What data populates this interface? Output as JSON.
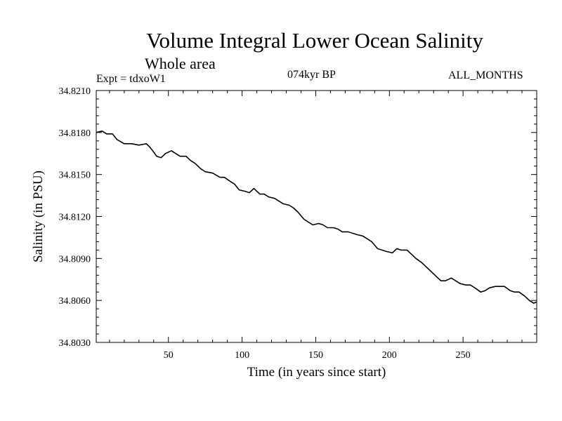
{
  "chart_data": {
    "type": "line",
    "title": "Volume Integral Lower Ocean Salinity",
    "subtitle": "Whole area",
    "annotations": {
      "experiment": "Expt = tdxoW1",
      "period": "074kyr BP",
      "months": "ALL_MONTHS"
    },
    "xlabel": "Time (in years since start)",
    "ylabel": "Salinity (in PSU)",
    "xlim": [
      1,
      300
    ],
    "ylim": [
      34.803,
      34.821
    ],
    "x_ticks": [
      50,
      100,
      150,
      200,
      250
    ],
    "x_tick_labels": [
      "50",
      "100",
      "150",
      "200",
      "250"
    ],
    "y_ticks": [
      34.803,
      34.806,
      34.809,
      34.812,
      34.815,
      34.818,
      34.821
    ],
    "y_tick_labels": [
      "34.8030",
      "34.8060",
      "34.8090",
      "34.8120",
      "34.8150",
      "34.8180",
      "34.8210"
    ],
    "grid": false,
    "series": [
      {
        "name": "salinity",
        "color": "#000000",
        "x": [
          1,
          5,
          8,
          12,
          15,
          20,
          25,
          30,
          35,
          37,
          40,
          42,
          45,
          48,
          52,
          55,
          58,
          62,
          65,
          68,
          72,
          75,
          80,
          85,
          88,
          92,
          95,
          98,
          102,
          105,
          108,
          112,
          115,
          118,
          122,
          125,
          128,
          132,
          135,
          138,
          142,
          145,
          148,
          152,
          155,
          158,
          162,
          165,
          168,
          172,
          175,
          178,
          182,
          185,
          188,
          192,
          195,
          198,
          202,
          205,
          208,
          212,
          215,
          218,
          222,
          225,
          228,
          232,
          235,
          238,
          242,
          245,
          248,
          252,
          255,
          258,
          262,
          265,
          268,
          272,
          275,
          278,
          282,
          285,
          288,
          292,
          295,
          298,
          300
        ],
        "y": [
          34.818,
          34.8181,
          34.8179,
          34.8179,
          34.8175,
          34.8172,
          34.8172,
          34.8171,
          34.8172,
          34.817,
          34.8166,
          34.8163,
          34.8162,
          34.8165,
          34.8167,
          34.8165,
          34.8163,
          34.8163,
          34.816,
          34.8158,
          34.8154,
          34.8152,
          34.8151,
          34.8148,
          34.8148,
          34.8145,
          34.8143,
          34.8139,
          34.8138,
          34.8137,
          34.814,
          34.8136,
          34.8136,
          34.8134,
          34.8133,
          34.8131,
          34.8129,
          34.8128,
          34.8126,
          34.8123,
          34.8118,
          34.8116,
          34.8114,
          34.8115,
          34.8114,
          34.8112,
          34.8112,
          34.8111,
          34.8109,
          34.8109,
          34.8108,
          34.8107,
          34.8106,
          34.8104,
          34.8102,
          34.8097,
          34.8096,
          34.8095,
          34.8094,
          34.8097,
          34.8096,
          34.8096,
          34.8093,
          34.809,
          34.8087,
          34.8084,
          34.8081,
          34.8077,
          34.8074,
          34.8074,
          34.8076,
          34.8074,
          34.8072,
          34.8071,
          34.8071,
          34.8069,
          34.8066,
          34.8067,
          34.8069,
          34.807,
          34.807,
          34.807,
          34.8067,
          34.8066,
          34.8066,
          34.8063,
          34.806,
          34.8058,
          34.8059
        ]
      }
    ]
  }
}
